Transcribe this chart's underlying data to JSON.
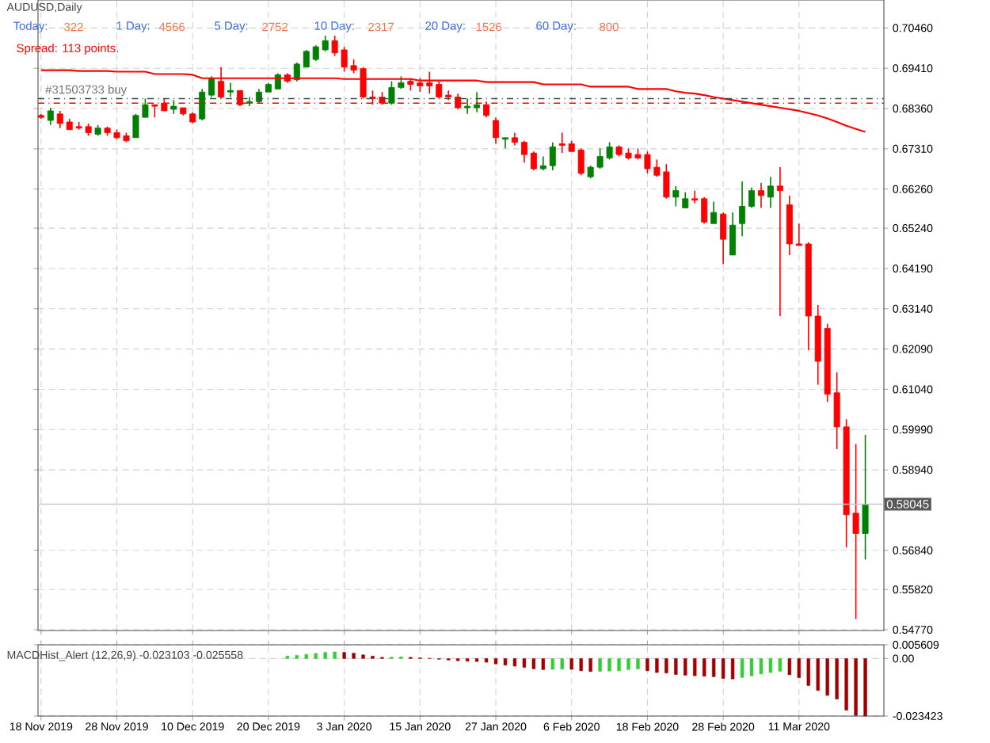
{
  "chart_data": [
    {
      "type": "candlestick",
      "title": "AUDUSD,Daily",
      "annotations": [
        "Today:",
        "322",
        "1 Day:",
        "4566",
        "5 Day:",
        "2752",
        "10 Day:",
        "2317",
        "20 Day:",
        "1526",
        "60 Day:",
        "800",
        "Spread: 113 points."
      ],
      "categories": [
        null,
        null,
        null,
        null,
        null,
        null,
        null,
        null,
        null,
        null,
        null,
        null,
        null,
        null,
        null,
        null,
        null,
        null,
        null,
        null,
        null,
        null,
        null,
        null,
        null,
        null,
        null,
        null,
        null,
        null,
        null,
        null,
        null,
        null,
        null,
        null,
        null,
        null,
        null,
        null,
        null,
        null,
        null,
        null,
        null,
        null,
        null,
        null,
        null,
        null,
        null,
        null,
        null,
        null,
        null,
        null,
        null,
        null,
        null,
        null,
        null,
        null,
        null,
        null,
        null,
        null,
        null,
        null,
        null,
        null,
        null,
        null,
        null,
        null,
        null,
        null,
        null,
        null,
        null,
        null,
        null,
        null,
        null,
        null,
        null,
        null,
        null,
        null
      ],
      "ohlc": [
        [
          0.6818,
          0.6822,
          0.6809,
          0.6813
        ],
        [
          0.6805,
          0.6838,
          0.6793,
          0.683
        ],
        [
          0.6822,
          0.683,
          0.6785,
          0.6797
        ],
        [
          0.6801,
          0.6809,
          0.6781,
          0.6781
        ],
        [
          0.6789,
          0.6801,
          0.6781,
          0.6785
        ],
        [
          0.6789,
          0.6797,
          0.6765,
          0.6773
        ],
        [
          0.6769,
          0.6793,
          0.6765,
          0.6785
        ],
        [
          0.6785,
          0.6789,
          0.6765,
          0.6773
        ],
        [
          0.6773,
          0.6781,
          0.6756,
          0.676
        ],
        [
          0.6765,
          0.6773,
          0.6748,
          0.6752
        ],
        [
          0.676,
          0.6822,
          0.676,
          0.6818
        ],
        [
          0.6813,
          0.6862,
          0.6813,
          0.6846
        ],
        [
          0.6846,
          0.6846,
          0.6813,
          0.6842
        ],
        [
          0.685,
          0.6862,
          0.683,
          0.683
        ],
        [
          0.6834,
          0.6858,
          0.6822,
          0.6842
        ],
        [
          0.6838,
          0.6838,
          0.6818,
          0.6822
        ],
        [
          0.6822,
          0.6826,
          0.6797,
          0.6801
        ],
        [
          0.6809,
          0.6887,
          0.6805,
          0.6879
        ],
        [
          0.6871,
          0.692,
          0.6866,
          0.6915
        ],
        [
          0.6907,
          0.6944,
          0.6862,
          0.6866
        ],
        [
          0.6879,
          0.6903,
          0.6866,
          0.6883
        ],
        [
          0.6883,
          0.6883,
          0.6842,
          0.6846
        ],
        [
          0.685,
          0.6866,
          0.6842,
          0.6854
        ],
        [
          0.6854,
          0.6887,
          0.685,
          0.6879
        ],
        [
          0.6879,
          0.6903,
          0.6879,
          0.6899
        ],
        [
          0.6887,
          0.6928,
          0.6887,
          0.6924
        ],
        [
          0.6924,
          0.6928,
          0.6903,
          0.6907
        ],
        [
          0.6911,
          0.6956,
          0.6907,
          0.6952
        ],
        [
          0.6944,
          0.6989,
          0.6944,
          0.6985
        ],
        [
          0.6964,
          0.7001,
          0.696,
          0.6997
        ],
        [
          0.6989,
          0.7026,
          0.6985,
          0.7013
        ],
        [
          0.7013,
          0.7026,
          0.6973,
          0.6981
        ],
        [
          0.6989,
          0.6997,
          0.6932,
          0.6944
        ],
        [
          0.6948,
          0.6964,
          0.6928,
          0.6936
        ],
        [
          0.694,
          0.6944,
          0.6862,
          0.6866
        ],
        [
          0.6866,
          0.6883,
          0.6846,
          0.6862
        ],
        [
          0.6866,
          0.6879,
          0.6846,
          0.685
        ],
        [
          0.685,
          0.6907,
          0.6846,
          0.6891
        ],
        [
          0.6891,
          0.692,
          0.6887,
          0.6903
        ],
        [
          0.6907,
          0.6915,
          0.6883,
          0.6899
        ],
        [
          0.6903,
          0.6915,
          0.6879,
          0.6895
        ],
        [
          0.6903,
          0.6932,
          0.6875,
          0.6895
        ],
        [
          0.6899,
          0.6907,
          0.6862,
          0.6866
        ],
        [
          0.6871,
          0.6883,
          0.6858,
          0.6866
        ],
        [
          0.6866,
          0.6875,
          0.6834,
          0.6838
        ],
        [
          0.6838,
          0.6862,
          0.6822,
          0.6842
        ],
        [
          0.6838,
          0.6879,
          0.6826,
          0.6846
        ],
        [
          0.6846,
          0.6854,
          0.6813,
          0.6818
        ],
        [
          0.6805,
          0.6813,
          0.6744,
          0.676
        ],
        [
          0.6756,
          0.676,
          0.6732,
          0.676
        ],
        [
          0.676,
          0.6773,
          0.674,
          0.6748
        ],
        [
          0.6748,
          0.6752,
          0.6695,
          0.6716
        ],
        [
          0.672,
          0.6724,
          0.6675,
          0.6679
        ],
        [
          0.6679,
          0.6711,
          0.6675,
          0.6687
        ],
        [
          0.6687,
          0.6748,
          0.6675,
          0.6736
        ],
        [
          0.6744,
          0.6773,
          0.672,
          0.674
        ],
        [
          0.6744,
          0.6752,
          0.6724,
          0.6724
        ],
        [
          0.6728,
          0.6732,
          0.6662,
          0.6667
        ],
        [
          0.6658,
          0.6687,
          0.6654,
          0.6683
        ],
        [
          0.6683,
          0.6732,
          0.6679,
          0.6711
        ],
        [
          0.6707,
          0.6748,
          0.6703,
          0.6736
        ],
        [
          0.6736,
          0.674,
          0.6711,
          0.6716
        ],
        [
          0.672,
          0.6732,
          0.6703,
          0.6707
        ],
        [
          0.6716,
          0.6732,
          0.6703,
          0.6707
        ],
        [
          0.6716,
          0.6724,
          0.6667,
          0.6679
        ],
        [
          0.6683,
          0.6703,
          0.6658,
          0.6662
        ],
        [
          0.6671,
          0.6691,
          0.6601,
          0.6605
        ],
        [
          0.6605,
          0.6634,
          0.6581,
          0.6622
        ],
        [
          0.6577,
          0.6618,
          0.6577,
          0.6601
        ],
        [
          0.6601,
          0.6622,
          0.6589,
          0.6597
        ],
        [
          0.6601,
          0.6605,
          0.6536,
          0.654
        ],
        [
          0.6536,
          0.6593,
          0.6536,
          0.6565
        ],
        [
          0.6561,
          0.6565,
          0.643,
          0.6495
        ],
        [
          0.6454,
          0.6565,
          0.6454,
          0.6532
        ],
        [
          0.6536,
          0.6646,
          0.6503,
          0.6581
        ],
        [
          0.6581,
          0.663,
          0.6577,
          0.6622
        ],
        [
          0.6622,
          0.6642,
          0.6577,
          0.6609
        ],
        [
          0.6605,
          0.6658,
          0.6577,
          0.6634
        ],
        [
          0.6634,
          0.6683,
          0.6295,
          0.6622
        ],
        [
          0.6585,
          0.6609,
          0.6454,
          0.6483
        ],
        [
          0.6483,
          0.6536,
          0.6479,
          0.6479
        ],
        [
          0.6483,
          0.6487,
          0.6206,
          0.6295
        ],
        [
          0.6295,
          0.6324,
          0.6116,
          0.6177
        ],
        [
          0.6263,
          0.6275,
          0.6071,
          0.6091
        ],
        [
          0.6095,
          0.6148,
          0.5948,
          0.6006
        ],
        [
          0.6006,
          0.6026,
          0.5692,
          0.5777
        ],
        [
          0.5781,
          0.5961,
          0.5505,
          0.5728
        ],
        [
          0.5728,
          0.5985,
          0.566,
          0.58045
        ]
      ],
      "colors": [
        "#ff0000",
        "#008000",
        "#ff0000",
        "#ff0000",
        "#ff0000",
        "#ff0000",
        "#008000",
        "#ff0000",
        "#ff0000",
        "#ff0000",
        "#008000",
        "#008000",
        "#ff0000",
        "#ff0000",
        "#008000",
        "#ff0000",
        "#ff0000",
        "#008000",
        "#008000",
        "#ff0000",
        "#008000",
        "#ff0000",
        "#008000",
        "#008000",
        "#008000",
        "#008000",
        "#ff0000",
        "#008000",
        "#008000",
        "#008000",
        "#008000",
        "#ff0000",
        "#ff0000",
        "#ff0000",
        "#ff0000",
        "#ff0000",
        "#ff0000",
        "#008000",
        "#008000",
        "#ff0000",
        "#ff0000",
        "#ff0000",
        "#ff0000",
        "#ff0000",
        "#ff0000",
        "#008000",
        "#008000",
        "#ff0000",
        "#ff0000",
        "#008000",
        "#ff0000",
        "#ff0000",
        "#ff0000",
        "#008000",
        "#008000",
        "#ff0000",
        "#ff0000",
        "#ff0000",
        "#008000",
        "#008000",
        "#008000",
        "#ff0000",
        "#ff0000",
        "#ff0000",
        "#ff0000",
        "#ff0000",
        "#ff0000",
        "#008000",
        "#008000",
        "#ff0000",
        "#ff0000",
        "#008000",
        "#ff0000",
        "#008000",
        "#008000",
        "#008000",
        "#ff0000",
        "#008000",
        "#ff0000",
        "#ff0000",
        "#ff0000",
        "#ff0000",
        "#ff0000",
        "#ff0000",
        "#ff0000",
        "#ff0000",
        "#ff0000",
        "#008000"
      ],
      "series": [
        {
          "type": "line",
          "color": "#ff0000",
          "values": [
            0.6936,
            0.6936,
            0.6936,
            0.6936,
            0.6934,
            0.6934,
            0.6934,
            0.6934,
            0.6932,
            0.6932,
            0.6932,
            0.6932,
            0.6926,
            0.6926,
            0.6926,
            0.6926,
            0.6924,
            0.6915,
            0.6915,
            0.6915,
            0.6915,
            0.6915,
            0.6915,
            0.6915,
            0.6915,
            0.6915,
            0.6915,
            0.6915,
            0.6915,
            0.6915,
            0.6915,
            0.6915,
            0.6913,
            0.6913,
            0.6913,
            0.6913,
            0.6913,
            0.6913,
            0.6913,
            0.6913,
            0.6909,
            0.6909,
            0.6909,
            0.6909,
            0.6909,
            0.6909,
            0.6909,
            0.6905,
            0.6905,
            0.6905,
            0.6905,
            0.6905,
            0.6905,
            0.6899,
            0.6899,
            0.6899,
            0.6899,
            0.6899,
            0.6893,
            0.6893,
            0.6893,
            0.6893,
            0.6893,
            0.6887,
            0.6887,
            0.6887,
            0.6887,
            0.6881,
            0.6877,
            0.6875,
            0.6871,
            0.6866,
            0.6862,
            0.6858,
            0.6854,
            0.685,
            0.6846,
            0.6842,
            0.6838,
            0.6834,
            0.683,
            0.6824,
            0.6818,
            0.681,
            0.6801,
            0.6791,
            0.6783,
            0.6775
          ]
        }
      ],
      "ylim": [
        0.5475,
        0.7119
      ],
      "yticks": [
        {
          "value": 0.7046,
          "label": "0.70460"
        },
        {
          "value": 0.6941,
          "label": "0.69410"
        },
        {
          "value": 0.6836,
          "label": "0.68360"
        },
        {
          "value": 0.6731,
          "label": "0.67310"
        },
        {
          "value": 0.6626,
          "label": "0.66260"
        },
        {
          "value": 0.6524,
          "label": "0.65240"
        },
        {
          "value": 0.6419,
          "label": "0.64190"
        },
        {
          "value": 0.6314,
          "label": "0.63140"
        },
        {
          "value": 0.6209,
          "label": "0.62090"
        },
        {
          "value": 0.6104,
          "label": "0.61040"
        },
        {
          "value": 0.5999,
          "label": "0.59990"
        },
        {
          "value": 0.5894,
          "label": "0.58940"
        },
        {
          "value": 0.5684,
          "label": "0.56840"
        },
        {
          "value": 0.5582,
          "label": "0.55820"
        },
        {
          "value": 0.5477,
          "label": "0.54770"
        }
      ],
      "ref_lines": [
        {
          "axis": "y",
          "value": 0.6862,
          "label": "#31503733 buy",
          "color": "#2f4f4f",
          "line_style": "dashed"
        },
        {
          "axis": "y",
          "value": 0.685,
          "color": "#ff0000",
          "line_style": "dashed"
        },
        {
          "axis": "y",
          "value": 0.58045,
          "label": "0.58045",
          "color": "#c8c8c8",
          "line_style": "solid"
        }
      ],
      "grid": true,
      "tick_labels": "y"
    },
    {
      "type": "bar",
      "title": "MACDHist_Alert (12,26,9) -0.023103 -0.025558",
      "categories": [
        "18 Nov 2019",
        null,
        null,
        null,
        null,
        null,
        null,
        null,
        "28 Nov 2019",
        null,
        null,
        null,
        null,
        null,
        null,
        null,
        "10 Dec 2019",
        null,
        null,
        null,
        null,
        null,
        null,
        null,
        "20 Dec 2019",
        null,
        null,
        null,
        null,
        null,
        null,
        null,
        "3 Jan 2020",
        null,
        null,
        null,
        null,
        null,
        null,
        null,
        "15 Jan 2020",
        null,
        null,
        null,
        null,
        null,
        null,
        null,
        "27 Jan 2020",
        null,
        null,
        null,
        null,
        null,
        null,
        null,
        "6 Feb 2020",
        null,
        null,
        null,
        null,
        null,
        null,
        null,
        "18 Feb 2020",
        null,
        null,
        null,
        null,
        null,
        null,
        null,
        "28 Feb 2020",
        null,
        null,
        null,
        null,
        null,
        null,
        null,
        "11 Mar 2020",
        null,
        null,
        null,
        null,
        null,
        null,
        null
      ],
      "values": [
        null,
        null,
        null,
        null,
        null,
        null,
        null,
        null,
        null,
        null,
        null,
        null,
        null,
        null,
        null,
        null,
        null,
        null,
        null,
        null,
        null,
        null,
        null,
        null,
        null,
        null,
        0.001,
        0.0013,
        0.0017,
        0.0021,
        0.0025,
        0.0027,
        0.0025,
        0.0022,
        0.0015,
        0.001,
        0.0005,
        0.0006,
        0.0007,
        0.0005,
        0.0003,
        0.0001,
        -0.0003,
        -0.0006,
        -0.0009,
        -0.0011,
        -0.0012,
        -0.0015,
        -0.0022,
        -0.0027,
        -0.0031,
        -0.0036,
        -0.0042,
        -0.0045,
        -0.0044,
        -0.0043,
        -0.0044,
        -0.005,
        -0.0053,
        -0.0052,
        -0.0051,
        -0.005,
        -0.0045,
        -0.0042,
        -0.005,
        -0.0057,
        -0.0059,
        -0.0065,
        -0.0068,
        -0.007,
        -0.0072,
        -0.0074,
        -0.0081,
        -0.0083,
        -0.0077,
        -0.007,
        -0.0063,
        -0.0057,
        -0.0052,
        -0.0066,
        -0.0078,
        -0.011,
        -0.013,
        -0.015,
        -0.0165,
        -0.021,
        -0.0232,
        -0.0234
      ],
      "colors": [
        "#32cd32",
        "#32cd32",
        "#32cd32",
        "#32cd32",
        "#32cd32",
        "#32cd32",
        "#32cd32",
        "#32cd32",
        "#32cd32",
        "#32cd32",
        "#32cd32",
        "#32cd32",
        "#32cd32",
        "#32cd32",
        "#32cd32",
        "#32cd32",
        "#32cd32",
        "#32cd32",
        "#32cd32",
        "#32cd32",
        "#32cd32",
        "#32cd32",
        "#32cd32",
        "#32cd32",
        "#32cd32",
        "#32cd32",
        "#32cd32",
        "#32cd32",
        "#32cd32",
        "#32cd32",
        "#32cd32",
        "#32cd32",
        "#a00000",
        "#a00000",
        "#a00000",
        "#a00000",
        "#a00000",
        "#32cd32",
        "#32cd32",
        "#a00000",
        "#a00000",
        "#a00000",
        "#a00000",
        "#a00000",
        "#a00000",
        "#a00000",
        "#a00000",
        "#a00000",
        "#a00000",
        "#a00000",
        "#a00000",
        "#a00000",
        "#a00000",
        "#a00000",
        "#32cd32",
        "#32cd32",
        "#a00000",
        "#a00000",
        "#a00000",
        "#32cd32",
        "#32cd32",
        "#32cd32",
        "#32cd32",
        "#32cd32",
        "#a00000",
        "#a00000",
        "#a00000",
        "#a00000",
        "#a00000",
        "#a00000",
        "#a00000",
        "#a00000",
        "#a00000",
        "#a00000",
        "#32cd32",
        "#32cd32",
        "#32cd32",
        "#32cd32",
        "#32cd32",
        "#a00000",
        "#a00000",
        "#a00000",
        "#a00000",
        "#a00000",
        "#a00000",
        "#a00000",
        "#a00000",
        "#a00000"
      ],
      "ylim": [
        -0.023423,
        0.005609
      ],
      "yticks": [
        {
          "value": 0.005609,
          "label": "0.005609"
        },
        {
          "value": 0,
          "label": "0.00"
        },
        {
          "value": -0.023423,
          "label": "-0.023423"
        }
      ],
      "grid": true
    }
  ]
}
